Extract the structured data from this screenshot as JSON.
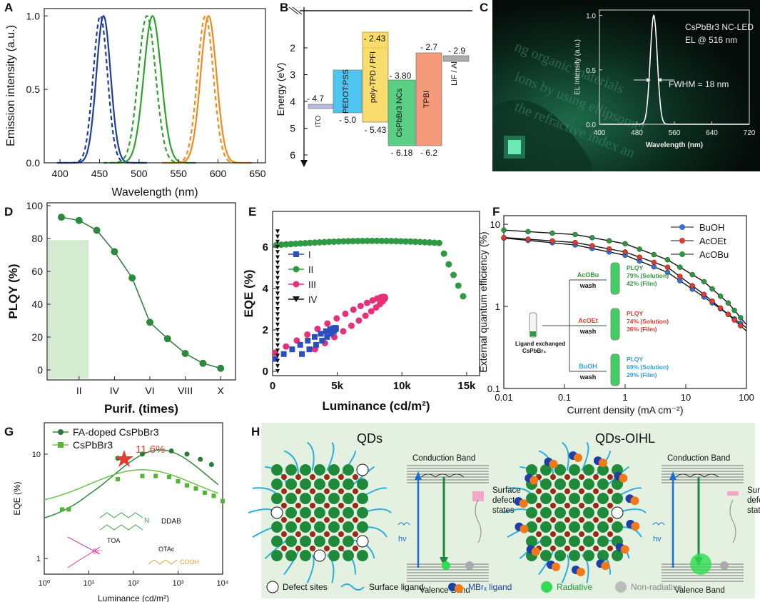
{
  "chart_data": [
    {
      "panel": "A",
      "type": "line",
      "xlabel": "Wavelength (nm)",
      "ylabel": "Emission intensity (a.u.)",
      "xlim": [
        380,
        660
      ],
      "ylim": [
        0,
        1.05
      ],
      "xticks": [
        "400",
        "450",
        "500",
        "550",
        "600",
        "650"
      ],
      "yticks": [
        "0.0",
        "0.5",
        "1.0"
      ],
      "series": [
        {
          "name": "blue solid",
          "color": "#1f3f9a",
          "center": 455,
          "sigma": 9,
          "dash": false
        },
        {
          "name": "blue dashed",
          "color": "#1f3f9a",
          "center": 451,
          "sigma": 9,
          "dash": true
        },
        {
          "name": "green solid",
          "color": "#2aa52a",
          "center": 517,
          "sigma": 11,
          "dash": false
        },
        {
          "name": "green dashed",
          "color": "#2aa52a",
          "center": 510,
          "sigma": 11,
          "dash": true
        },
        {
          "name": "orange solid",
          "color": "#f28a1e",
          "center": 588,
          "sigma": 10,
          "dash": false
        },
        {
          "name": "orange dashed",
          "color": "#f28a1e",
          "center": 584,
          "sigma": 10,
          "dash": true
        }
      ]
    },
    {
      "panel": "B",
      "type": "diagram",
      "ylabel": "Energy (eV)",
      "yticks": [
        "2",
        "3",
        "4",
        "5",
        "6"
      ],
      "layers": [
        {
          "name": "ITO",
          "top": "- 4.7",
          "color": "#b9b9e6"
        },
        {
          "name": "PEDOT:PSS",
          "bottom": "- 5.0",
          "color": "#4fc6f0"
        },
        {
          "name": "poly-TPD / PFI",
          "top": "- 2.43",
          "bottom": "- 5.43",
          "color": "#f8dc6c"
        },
        {
          "name": "CsPbBr3 NCs",
          "top": "- 3.80",
          "bottom": "- 6.18",
          "color": "#5bcf84"
        },
        {
          "name": "TPBI",
          "top": "- 2.7",
          "bottom": "- 6.2",
          "color": "#f29a7a"
        },
        {
          "name": "LiF / Al",
          "top": "- 2.9",
          "color": "#aaaaaa"
        }
      ]
    },
    {
      "panel": "C",
      "type": "line",
      "title1": "CsPbBr3 NC-LED",
      "title2": "EL @ 516 nm",
      "annotation": "FWHM = 18 nm",
      "xlabel": "Wavelength (nm)",
      "ylabel": "EL Intensity (a.u.)",
      "xlim": [
        400,
        720
      ],
      "ylim": [
        0,
        1.05
      ],
      "xticks": [
        "400",
        "480",
        "560",
        "640",
        "720"
      ],
      "yticks": [
        "0.0",
        "0.5",
        "1.0"
      ],
      "center": 516,
      "sigma": 7.6,
      "photo_text": [
        "ng organic materials",
        "ions by using ellipsomet",
        "the refractive index an"
      ]
    },
    {
      "panel": "D",
      "type": "line",
      "xlabel": "Purif. (times)",
      "ylabel": "PLQY (%)",
      "xticks": [
        "II",
        "IV",
        "VI",
        "VIII",
        "X"
      ],
      "yticks": [
        "0",
        "20",
        "40",
        "60",
        "80",
        "100"
      ],
      "x": [
        1,
        2,
        3,
        4,
        5,
        6,
        7,
        8,
        9,
        10
      ],
      "values": [
        93,
        91,
        85,
        72,
        56,
        29,
        19,
        10,
        4,
        1
      ]
    },
    {
      "panel": "E",
      "type": "scatter",
      "xlabel": "Luminance (cd/m²)",
      "ylabel": "EQE (%)",
      "xticks": [
        "0",
        "5k",
        "10k",
        "15k"
      ],
      "yticks": [
        "0",
        "2",
        "4",
        "6"
      ],
      "legend": [
        "I",
        "II",
        "III",
        "IV"
      ]
    },
    {
      "panel": "F",
      "type": "line",
      "xlabel": "Current density (mA cm⁻²)",
      "ylabel": "External quantum efficiency (%)",
      "xticks": [
        "0.01",
        "0.1",
        "1",
        "10",
        "100"
      ],
      "yticks": [
        "0.1",
        "1",
        "10"
      ],
      "series": [
        {
          "name": "BuOH",
          "color": "#3a6fd8",
          "values_at": [
            [
              0.01,
              6.8
            ],
            [
              0.15,
              5.6
            ],
            [
              1,
              4.2
            ],
            [
              5,
              2.6
            ],
            [
              20,
              1.3
            ],
            [
              50,
              0.8
            ],
            [
              100,
              0.55
            ]
          ]
        },
        {
          "name": "AcOEt",
          "color": "#e23b2e",
          "values_at": [
            [
              0.01,
              6.9
            ],
            [
              0.15,
              6.0
            ],
            [
              1,
              4.6
            ],
            [
              5,
              3.0
            ],
            [
              20,
              1.4
            ],
            [
              50,
              0.8
            ],
            [
              100,
              0.5
            ]
          ]
        },
        {
          "name": "AcOBu",
          "color": "#2c9a3c",
          "values_at": [
            [
              0.01,
              8.5
            ],
            [
              0.15,
              7.5
            ],
            [
              1,
              5.8
            ],
            [
              5,
              3.7
            ],
            [
              20,
              2.0
            ],
            [
              50,
              1.1
            ],
            [
              100,
              0.6
            ]
          ]
        }
      ],
      "inset": {
        "start": "Ligand exchanged CsPbBr₃",
        "rows": [
          {
            "wash": "AcOBu",
            "wash2": "wash",
            "l1": "PLQY",
            "l2": "79% (Solution)",
            "l3": "42% (Film)",
            "color": "#2c9a3c"
          },
          {
            "wash": "AcOEt",
            "wash2": "wash",
            "l1": "PLQY",
            "l2": "74% (Solution)",
            "l3": "36% (Film)",
            "color": "#e23b2e"
          },
          {
            "wash": "BuOH",
            "wash2": "wash",
            "l1": "PLQY",
            "l2": "69% (Solution)",
            "l3": "29% (Film)",
            "color": "#2f9de0"
          }
        ]
      }
    },
    {
      "panel": "G",
      "type": "line",
      "xlabel": "Luminance (cd/m²)",
      "ylabel": "EQE (%)",
      "xticks": [
        "10⁰",
        "10¹",
        "10²",
        "10³",
        "10⁴"
      ],
      "yticks": [
        "1",
        "10"
      ],
      "legend": [
        "FA-doped CsPbBr3",
        "CsPbBr3"
      ],
      "peak": "11.6%",
      "molecules": {
        "a": "DDAB",
        "b": "TOA",
        "c": "OTAc",
        "d": "COOH",
        "br": "Br⁻"
      }
    },
    {
      "panel": "H",
      "type": "diagram",
      "left_title": "QDs",
      "right_title": "QDs-OIHL",
      "cb": "Conduction Band",
      "vb": "Valence Band",
      "defect1": "Surface",
      "defect2": "defect",
      "defect3": "states",
      "hv": "hv",
      "legend": [
        "Defect sites",
        "Surface ligand",
        "MBrₓ ligand",
        "Radiative",
        "Non-radiative"
      ]
    }
  ],
  "panel_letters": [
    "A",
    "B",
    "C",
    "D",
    "E",
    "F",
    "G",
    "H"
  ]
}
